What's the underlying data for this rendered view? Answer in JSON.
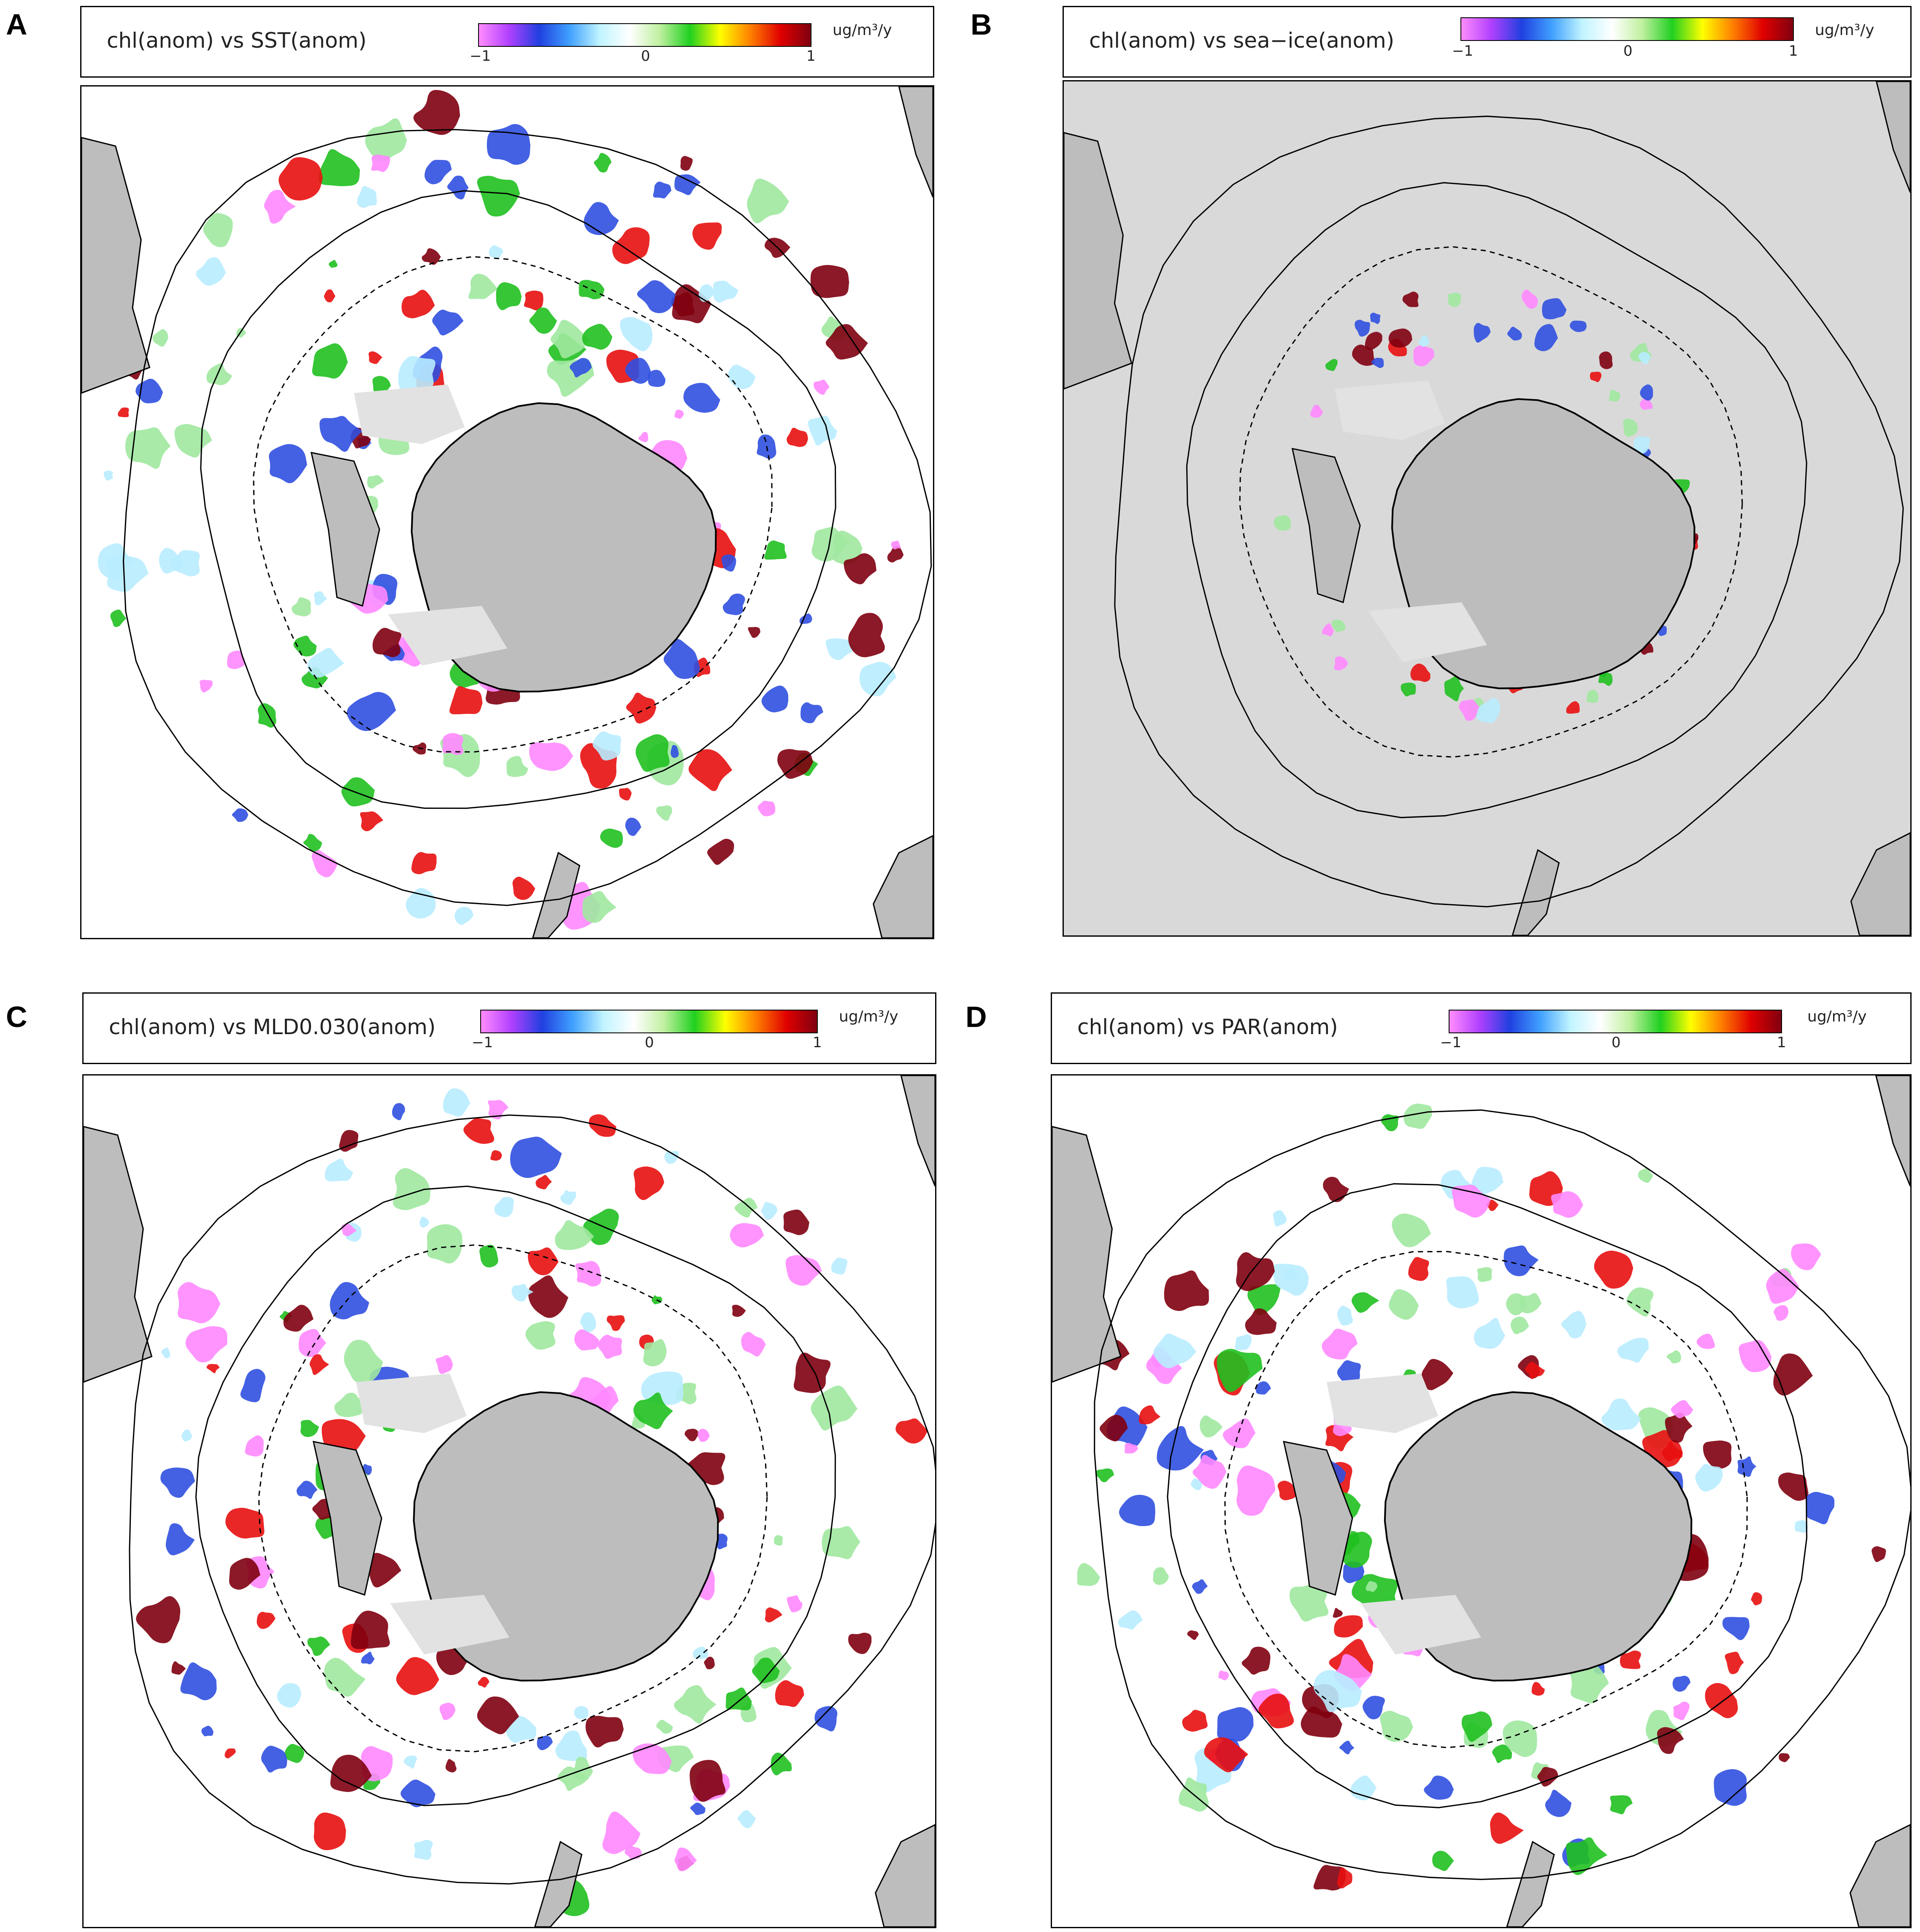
{
  "panels": [
    {
      "letter": "A",
      "title": "chl(anom) vs SST(anom)",
      "tick_min": "−1",
      "tick_mid": "0",
      "tick_max": "1",
      "units": "ug/m³/y",
      "background": "#ffffff"
    },
    {
      "letter": "B",
      "title": "chl(anom) vs sea−ice(anom)",
      "tick_min": "−1",
      "tick_mid": "0",
      "tick_max": "1",
      "units": "ug/m³/y",
      "background": "#d9d9d9"
    },
    {
      "letter": "C",
      "title": "chl(anom) vs MLD0.030(anom)",
      "tick_min": "−1",
      "tick_mid": "0",
      "tick_max": "1",
      "units": "ug/m³/y",
      "background": "#ffffff"
    },
    {
      "letter": "D",
      "title": "chl(anom) vs PAR(anom)",
      "tick_min": "−1",
      "tick_mid": "0",
      "tick_max": "1",
      "units": "ug/m³/y",
      "background": "#ffffff"
    }
  ],
  "colors": {
    "land": "#bdbdbd",
    "ice_shelf": "#e2e2e2",
    "coast": "#000000",
    "colorbar_stops": [
      "#ff8cff",
      "#b040ff",
      "#2040e0",
      "#40a0ff",
      "#c0f4ff",
      "#ffffff",
      "#c0f0a0",
      "#20d020",
      "#ffff00",
      "#ff8000",
      "#e00000",
      "#800010"
    ],
    "negative_strong": "#ff88ff",
    "negative_mid": "#3050e0",
    "negative_weak": "#b8ecff",
    "positive_weak": "#a0e8a0",
    "positive_mid": "#20c020",
    "positive_strong": "#e81010",
    "positive_max": "#800010"
  }
}
